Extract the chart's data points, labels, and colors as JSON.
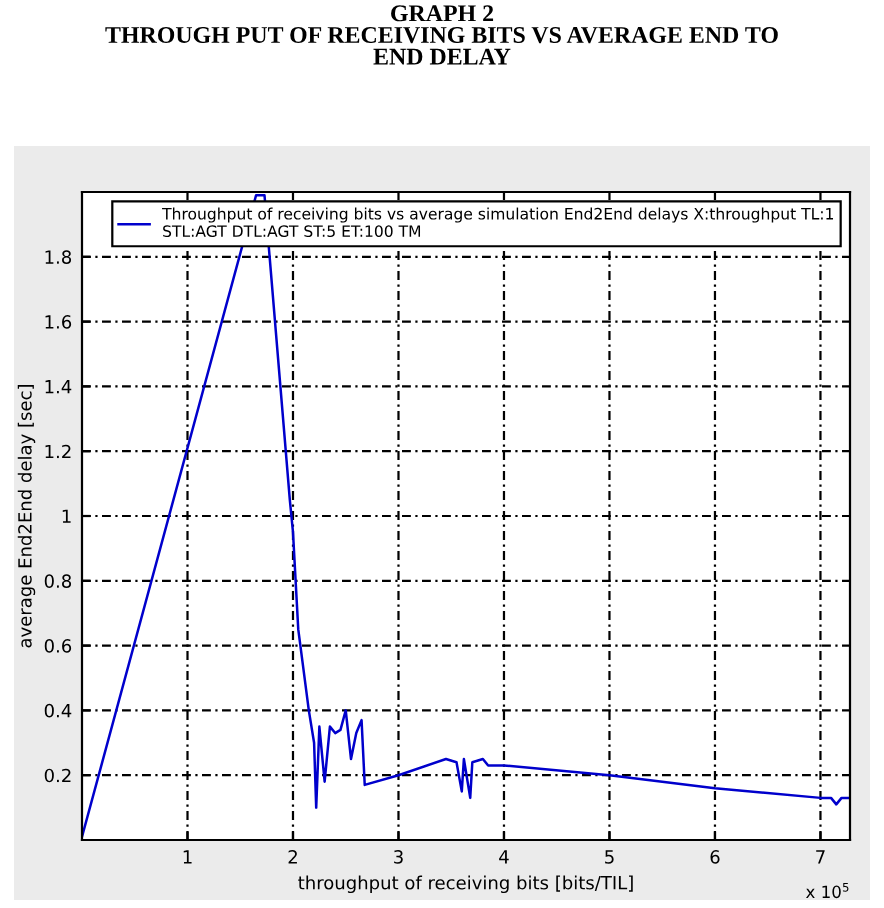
{
  "chart_data": {
    "type": "line",
    "title": "GRAPH 2\nTHROUGH PUT OF RECEIVING BITS VS AVERAGE END TO\nEND DELAY",
    "xlabel": "throughput of receiving bits [bits/TIL]",
    "ylabel": "average End2End delay [sec]",
    "annotations": [
      "x 10$^{5}$"
    ],
    "series": [
      {
        "name": "Throughput of receiving bits vs average simulation End2End delays X:throughput TL:1\nSTL:AGT DTL:AGT ST:5 ET:100 TM",
        "color": "#0000cc",
        "x": [
          0.0,
          1.65,
          1.73,
          1.97,
          2.0,
          2.05,
          2.15,
          2.2,
          2.22,
          2.25,
          2.3,
          2.35,
          2.4,
          2.45,
          2.5,
          2.55,
          2.6,
          2.65,
          2.68,
          3.0,
          3.45,
          3.55,
          3.6,
          3.62,
          3.68,
          3.7,
          3.8,
          3.85,
          4.0,
          5.0,
          6.0,
          7.0,
          7.1,
          7.15,
          7.2,
          7.28
        ],
        "values": [
          0.01,
          1.99,
          1.99,
          1.05,
          0.95,
          0.65,
          0.4,
          0.3,
          0.1,
          0.35,
          0.18,
          0.35,
          0.33,
          0.34,
          0.4,
          0.25,
          0.33,
          0.37,
          0.17,
          0.2,
          0.25,
          0.24,
          0.15,
          0.25,
          0.13,
          0.24,
          0.25,
          0.23,
          0.23,
          0.2,
          0.16,
          0.13,
          0.13,
          0.11,
          0.13,
          0.13
        ]
      }
    ],
    "xlim": [
      0,
      7.28
    ],
    "ylim": [
      0,
      2.0
    ],
    "xticks": [
      1,
      2,
      3,
      4,
      5,
      6,
      7
    ],
    "yticks": [
      0.2,
      0.4,
      0.6,
      0.8,
      1,
      1.2,
      1.4,
      1.6,
      1.8
    ],
    "grid": true,
    "legend": "top right",
    "line_style": "solid",
    "marker": "none"
  }
}
